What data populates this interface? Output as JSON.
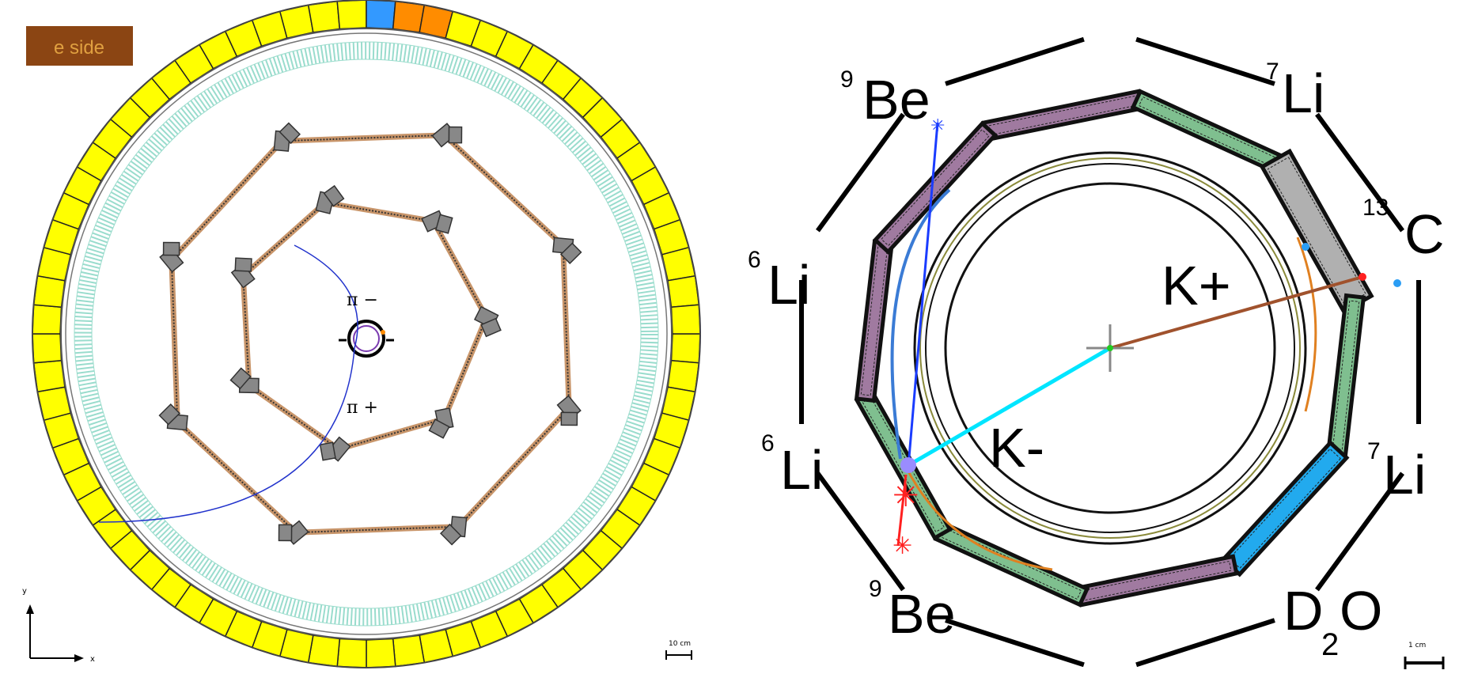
{
  "left_panel": {
    "side_badge": "e side",
    "badge_color": "#8b4513",
    "badge_text_color": "#e0a040",
    "track_labels": [
      "π −",
      "π +"
    ],
    "axis_y": "y",
    "axis_x": "x",
    "scale_bar": "10 cm",
    "calorimeter_color": "#ffff00",
    "hit_colors": [
      "#3399ff",
      "#ff8c00",
      "#ff8c00"
    ],
    "drift_chamber_color": "#7fd3c0",
    "track_color": "#2233cc"
  },
  "right_panel": {
    "targets": [
      {
        "sup": "9",
        "name": "Be"
      },
      {
        "sup": "7",
        "name": "Li"
      },
      {
        "sup": "13",
        "name": "C"
      },
      {
        "sup": "6",
        "name": "Li"
      },
      {
        "sup": "6",
        "name": "Li"
      },
      {
        "sup": "7",
        "name": "Li"
      },
      {
        "sup": "9",
        "name": "Be"
      }
    ],
    "d2o": {
      "D": "D",
      "sub": "2",
      "O": "O"
    },
    "particle_labels": [
      "K+",
      "K-"
    ],
    "scale_bar": "1 cm",
    "kplus_color": "#a0522d",
    "kminus_color": "#00e5ff",
    "track_blue": "#1a3cff",
    "arc_blue": "#3a7bd5",
    "arc_orange": "#e08020",
    "red_track": "#ff2020",
    "module_green": "#7fbf8f",
    "module_purple": "#a07aa0",
    "module_gray": "#b0b0b0",
    "module_cyan": "#22aaee"
  }
}
